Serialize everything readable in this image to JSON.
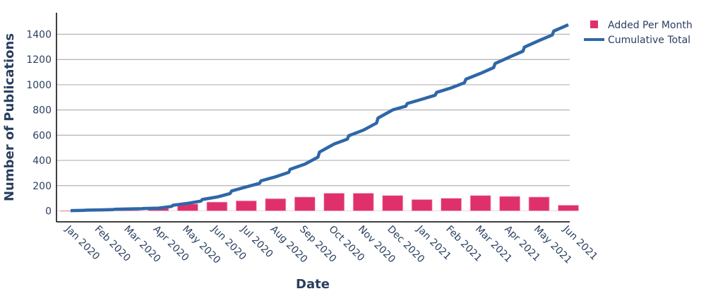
{
  "chart_data": {
    "type": "bar+line",
    "title": "",
    "xlabel": "Date",
    "ylabel": "Number of Publications",
    "ylim": [
      -80,
      1560
    ],
    "yticks": [
      0,
      200,
      400,
      600,
      800,
      1000,
      1200,
      1400
    ],
    "grid": true,
    "legend_position": "top-right outside",
    "categories": [
      "Jan 2020",
      "Feb 2020",
      "Mar 2020",
      "Apr 2020",
      "May 2020",
      "Jun 2020",
      "Jul 2020",
      "Aug 2020",
      "Sep 2020",
      "Oct 2020",
      "Nov 2020",
      "Dec 2020",
      "Jan 2021",
      "Feb 2021",
      "Mar 2021",
      "Apr 2021",
      "May 2021",
      "Jun 2021"
    ],
    "series": [
      {
        "name": "Added Per Month",
        "type": "bar",
        "color": "#e0306b",
        "values": [
          2,
          3,
          5,
          20,
          55,
          70,
          80,
          97,
          110,
          140,
          140,
          122,
          90,
          100,
          122,
          115,
          110,
          45
        ]
      },
      {
        "name": "Cumulative Total",
        "type": "line",
        "color": "#2e67a8",
        "values": [
          2,
          8,
          15,
          22,
          60,
          110,
          190,
          270,
          370,
          530,
          640,
          800,
          885,
          975,
          1090,
          1220,
          1350,
          1475
        ]
      }
    ]
  },
  "legend": {
    "items": [
      {
        "label": "Added Per Month",
        "color": "#e0306b",
        "kind": "square"
      },
      {
        "label": "Cumulative Total",
        "color": "#2e67a8",
        "kind": "line"
      }
    ]
  },
  "axes": {
    "x_title": "Date",
    "y_title": "Number of Publications"
  }
}
